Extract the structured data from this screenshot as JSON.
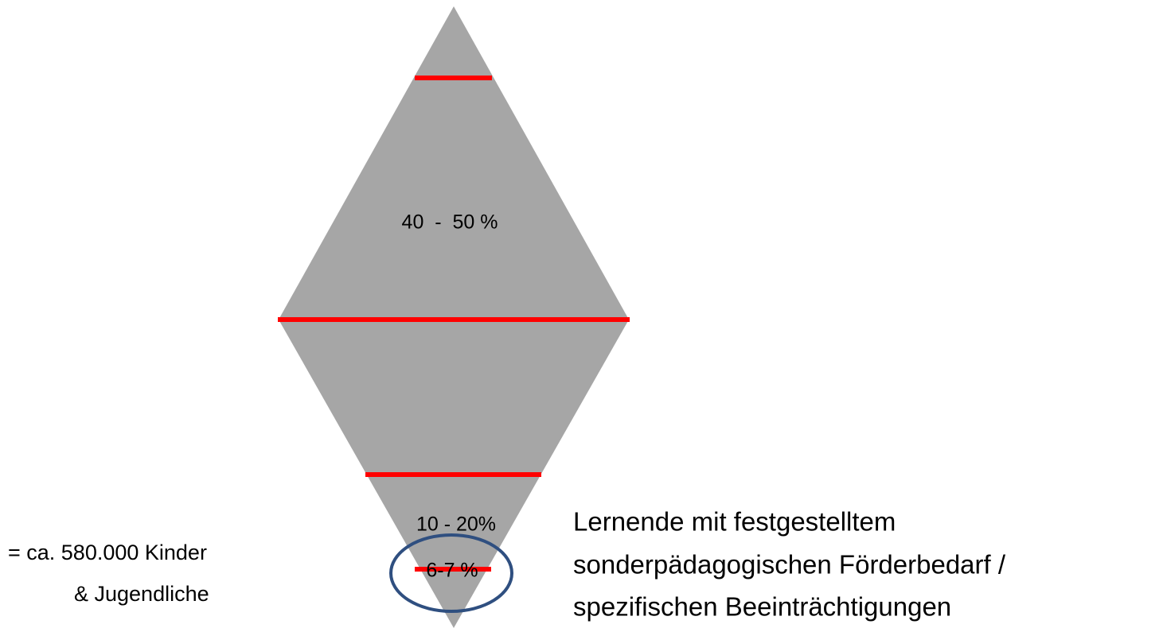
{
  "diagram": {
    "segments": [
      {
        "label": "40  -  50 %"
      },
      {
        "label": "10 - 20%"
      },
      {
        "label": "6-7 %"
      }
    ],
    "left_note": [
      "= ca. 580.000 Kinder",
      "& Jugendliche"
    ],
    "right_note": [
      "Lernende mit festgestelltem",
      "sonderpädagogischen Förderbedarf /",
      "spezifischen Beeinträchtigungen"
    ]
  }
}
